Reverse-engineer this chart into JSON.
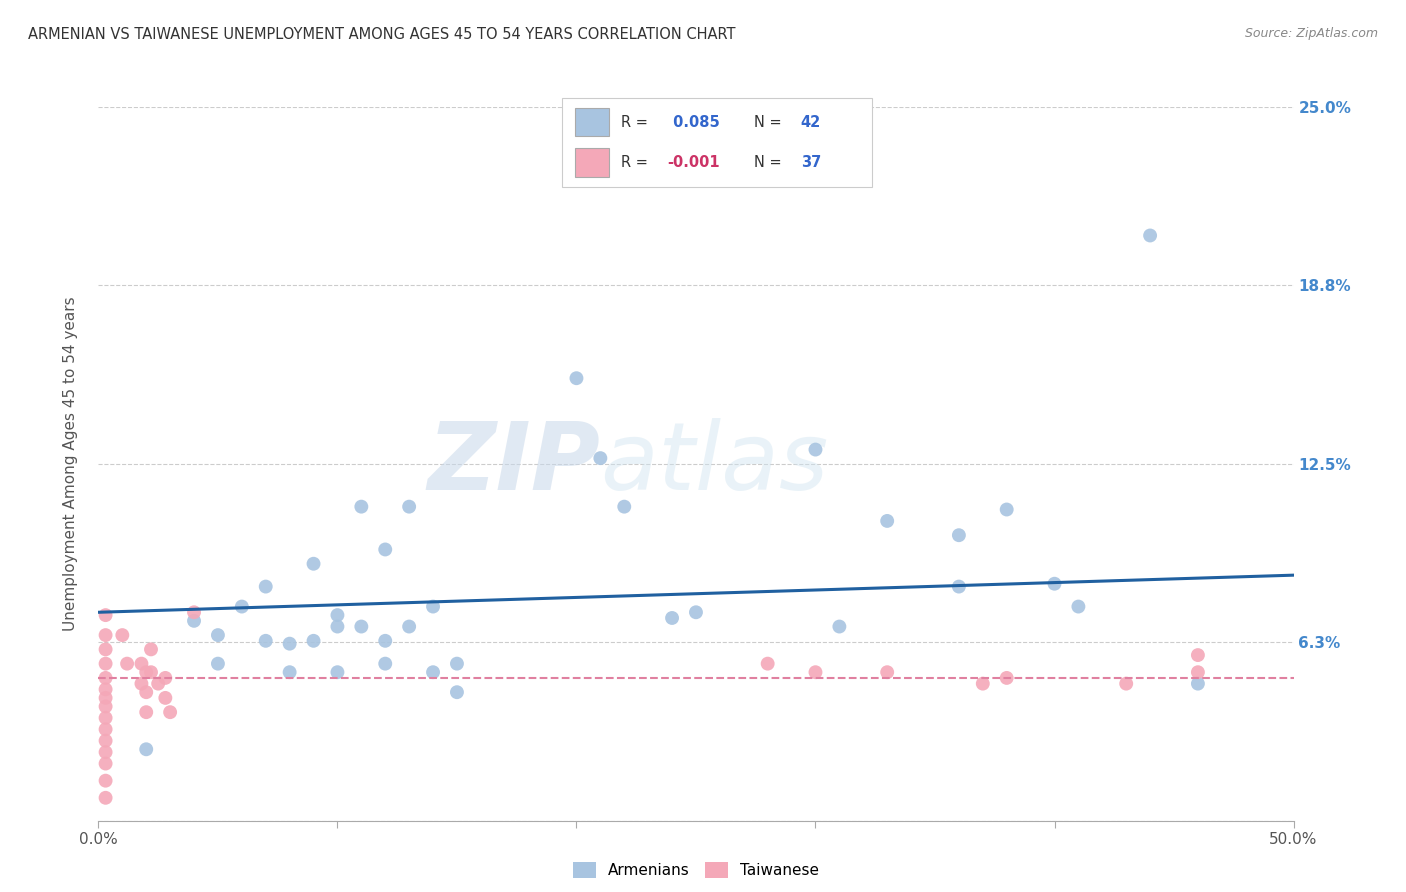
{
  "title": "ARMENIAN VS TAIWANESE UNEMPLOYMENT AMONG AGES 45 TO 54 YEARS CORRELATION CHART",
  "source": "Source: ZipAtlas.com",
  "ylabel": "Unemployment Among Ages 45 to 54 years",
  "xlim": [
    0.0,
    0.5
  ],
  "ylim": [
    0.0,
    0.25
  ],
  "xticks": [
    0.0,
    0.1,
    0.2,
    0.3,
    0.4,
    0.5
  ],
  "xticklabels": [
    "0.0%",
    "",
    "",
    "",
    "",
    "50.0%"
  ],
  "ytick_positions": [
    0.0,
    0.0625,
    0.125,
    0.1875,
    0.25
  ],
  "yticklabels": [
    "",
    "6.3%",
    "12.5%",
    "18.8%",
    "25.0%"
  ],
  "armenian_color": "#a8c4e0",
  "taiwanese_color": "#f4a8b8",
  "armenian_line_color": "#2060a0",
  "taiwanese_line_color": "#e080a0",
  "watermark_zip": "ZIP",
  "watermark_atlas": "atlas",
  "armenian_scatter_x": [
    0.02,
    0.04,
    0.05,
    0.05,
    0.06,
    0.07,
    0.07,
    0.08,
    0.08,
    0.09,
    0.09,
    0.1,
    0.1,
    0.1,
    0.11,
    0.11,
    0.12,
    0.12,
    0.12,
    0.13,
    0.13,
    0.14,
    0.14,
    0.15,
    0.15,
    0.2,
    0.21,
    0.22,
    0.24,
    0.25,
    0.3,
    0.31,
    0.33,
    0.36,
    0.36,
    0.38,
    0.4,
    0.41,
    0.44,
    0.46
  ],
  "armenian_scatter_y": [
    0.025,
    0.07,
    0.065,
    0.055,
    0.075,
    0.082,
    0.063,
    0.052,
    0.062,
    0.09,
    0.063,
    0.072,
    0.068,
    0.052,
    0.11,
    0.068,
    0.095,
    0.063,
    0.055,
    0.11,
    0.068,
    0.075,
    0.052,
    0.055,
    0.045,
    0.155,
    0.127,
    0.11,
    0.071,
    0.073,
    0.13,
    0.068,
    0.105,
    0.1,
    0.082,
    0.109,
    0.083,
    0.075,
    0.205,
    0.048
  ],
  "taiwanese_scatter_x": [
    0.003,
    0.003,
    0.003,
    0.003,
    0.003,
    0.003,
    0.003,
    0.003,
    0.003,
    0.003,
    0.003,
    0.003,
    0.003,
    0.003,
    0.003,
    0.01,
    0.012,
    0.018,
    0.018,
    0.02,
    0.02,
    0.02,
    0.022,
    0.022,
    0.025,
    0.028,
    0.028,
    0.03,
    0.04,
    0.28,
    0.3,
    0.33,
    0.37,
    0.38,
    0.43,
    0.46,
    0.46
  ],
  "taiwanese_scatter_y": [
    0.072,
    0.065,
    0.06,
    0.055,
    0.05,
    0.046,
    0.043,
    0.04,
    0.036,
    0.032,
    0.028,
    0.024,
    0.02,
    0.014,
    0.008,
    0.065,
    0.055,
    0.055,
    0.048,
    0.052,
    0.045,
    0.038,
    0.06,
    0.052,
    0.048,
    0.05,
    0.043,
    0.038,
    0.073,
    0.055,
    0.052,
    0.052,
    0.048,
    0.05,
    0.048,
    0.052,
    0.058
  ],
  "armenian_line_x": [
    0.0,
    0.5
  ],
  "armenian_line_y": [
    0.073,
    0.086
  ],
  "taiwanese_line_x": [
    0.0,
    0.5
  ],
  "taiwanese_line_y": [
    0.05,
    0.05
  ]
}
